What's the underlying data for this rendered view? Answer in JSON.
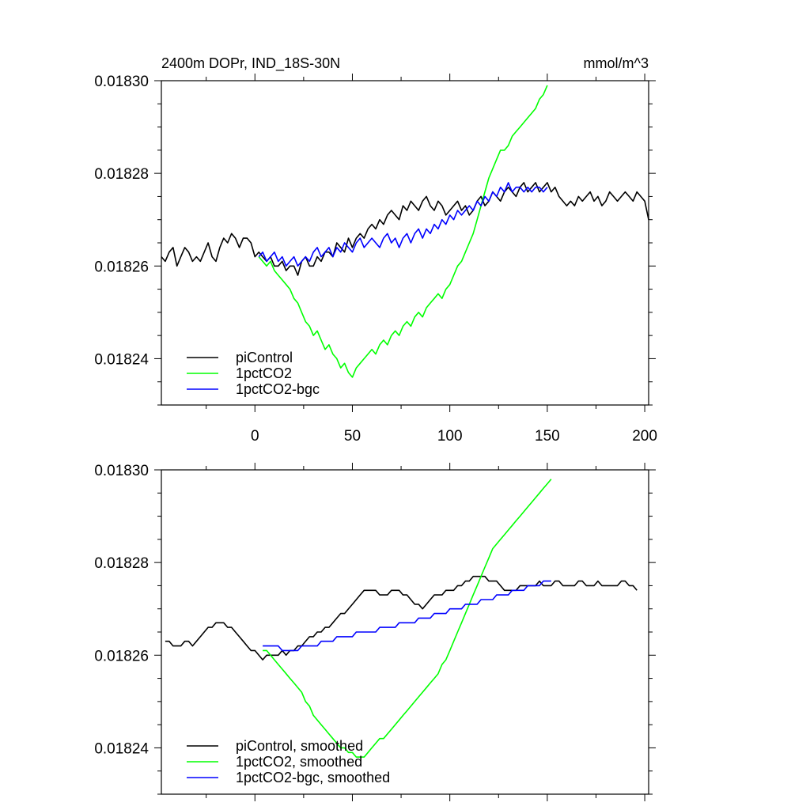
{
  "chart_data": [
    {
      "type": "line",
      "title_left": "2400m DOPr, IND_18S-30N",
      "title_right": "mmol/m^3",
      "xlim": [
        -48,
        202
      ],
      "ylim": [
        0.01823,
        0.0183
      ],
      "x_ticks": [
        0,
        50,
        100,
        150,
        200
      ],
      "y_ticks": [
        0.01824,
        0.01826,
        0.01828,
        0.0183
      ],
      "x_tick_labels": [
        "0",
        "50",
        "100",
        "150",
        "200"
      ],
      "y_tick_labels": [
        "0.01824",
        "0.01826",
        "0.01828",
        "0.01830"
      ],
      "legend_position": "bottom-left",
      "series": [
        {
          "name": "piControl",
          "color": "#000000",
          "x_start": -48,
          "x_step": 2,
          "values": [
            0.018262,
            0.018261,
            0.018263,
            0.018264,
            0.01826,
            0.018262,
            0.018264,
            0.018263,
            0.018261,
            0.018262,
            0.018261,
            0.018263,
            0.018265,
            0.018262,
            0.018261,
            0.018264,
            0.018266,
            0.018265,
            0.018267,
            0.018266,
            0.018264,
            0.018266,
            0.018266,
            0.018265,
            0.018262,
            0.018263,
            0.018262,
            0.018261,
            0.018262,
            0.01826,
            0.01826,
            0.018261,
            0.018259,
            0.01826,
            0.01826,
            0.018258,
            0.018261,
            0.018262,
            0.01826,
            0.01826,
            0.018262,
            0.018261,
            0.018263,
            0.018263,
            0.018262,
            0.018265,
            0.018264,
            0.018263,
            0.018266,
            0.018264,
            0.018266,
            0.018267,
            0.018266,
            0.018268,
            0.018269,
            0.018268,
            0.01827,
            0.018269,
            0.018271,
            0.018272,
            0.018271,
            0.01827,
            0.018273,
            0.018272,
            0.018274,
            0.018273,
            0.018272,
            0.018274,
            0.018275,
            0.018273,
            0.018272,
            0.018274,
            0.018273,
            0.018271,
            0.018272,
            0.018273,
            0.018274,
            0.018272,
            0.018273,
            0.018271,
            0.018272,
            0.018274,
            0.018275,
            0.018273,
            0.018274,
            0.018276,
            0.018275,
            0.018274,
            0.018276,
            0.018277,
            0.018276,
            0.018275,
            0.018277,
            0.018278,
            0.018276,
            0.018277,
            0.018278,
            0.018276,
            0.018277,
            0.018278,
            0.018276,
            0.018277,
            0.018275,
            0.018274,
            0.018273,
            0.018274,
            0.018273,
            0.018275,
            0.018274,
            0.018275,
            0.018276,
            0.018274,
            0.018275,
            0.018273,
            0.018274,
            0.018276,
            0.018275,
            0.018274,
            0.018275,
            0.018276,
            0.018275,
            0.018274,
            0.018276,
            0.018275,
            0.018274,
            0.01827
          ]
        },
        {
          "name": "1pctCO2",
          "color": "#00ff00",
          "x_start": 2,
          "x_step": 2,
          "values": [
            0.018262,
            0.018261,
            0.01826,
            0.018261,
            0.018259,
            0.018258,
            0.018257,
            0.018256,
            0.018255,
            0.018253,
            0.018252,
            0.01825,
            0.018248,
            0.018247,
            0.018245,
            0.018246,
            0.018244,
            0.018242,
            0.018243,
            0.018241,
            0.01824,
            0.018238,
            0.018239,
            0.018237,
            0.018236,
            0.018238,
            0.018239,
            0.01824,
            0.018241,
            0.018242,
            0.018241,
            0.018243,
            0.018244,
            0.018243,
            0.018245,
            0.018246,
            0.018245,
            0.018247,
            0.018248,
            0.018247,
            0.018249,
            0.01825,
            0.018249,
            0.018251,
            0.018252,
            0.018253,
            0.018254,
            0.018253,
            0.018255,
            0.018256,
            0.018258,
            0.01826,
            0.018261,
            0.018263,
            0.018265,
            0.018267,
            0.01827,
            0.018273,
            0.018276,
            0.018279,
            0.018281,
            0.018283,
            0.018285,
            0.018285,
            0.018286,
            0.018288,
            0.018289,
            0.01829,
            0.018291,
            0.018292,
            0.018293,
            0.018294,
            0.018296,
            0.018297,
            0.018299
          ]
        },
        {
          "name": "1pctCO2-bgc",
          "color": "#0000ff",
          "x_start": 2,
          "x_step": 2,
          "values": [
            0.018262,
            0.018263,
            0.018261,
            0.018262,
            0.018263,
            0.018261,
            0.018262,
            0.01826,
            0.018261,
            0.018262,
            0.01826,
            0.018261,
            0.018262,
            0.018261,
            0.018263,
            0.018264,
            0.018262,
            0.018263,
            0.018264,
            0.018262,
            0.018264,
            0.018263,
            0.018265,
            0.018264,
            0.018263,
            0.018265,
            0.018266,
            0.018264,
            0.018265,
            0.018266,
            0.018265,
            0.018264,
            0.018266,
            0.018267,
            0.018265,
            0.018266,
            0.018264,
            0.018266,
            0.018267,
            0.018265,
            0.018267,
            0.018268,
            0.018266,
            0.018268,
            0.018267,
            0.018269,
            0.018268,
            0.01827,
            0.018269,
            0.018271,
            0.01827,
            0.018272,
            0.018271,
            0.018272,
            0.018273,
            0.018272,
            0.018274,
            0.018273,
            0.018275,
            0.018274,
            0.018276,
            0.018275,
            0.018277,
            0.018276,
            0.018278,
            0.018276,
            0.018277,
            0.018277,
            0.018276,
            0.018277,
            0.018276,
            0.018277,
            0.018277,
            0.018276,
            0.018277
          ]
        }
      ]
    },
    {
      "type": "line",
      "xlim": [
        -48,
        202
      ],
      "ylim": [
        0.01823,
        0.0183
      ],
      "x_ticks": [
        0,
        50,
        100,
        150,
        200
      ],
      "y_ticks": [
        0.01824,
        0.01826,
        0.01828,
        0.0183
      ],
      "y_tick_labels": [
        "0.01824",
        "0.01826",
        "0.01828",
        "0.01830"
      ],
      "legend_position": "bottom-left",
      "series": [
        {
          "name": "piControl, smoothed",
          "color": "#000000",
          "x_start": -46,
          "x_step": 2,
          "values": [
            0.018263,
            0.018263,
            0.018262,
            0.018262,
            0.018262,
            0.018263,
            0.018263,
            0.018262,
            0.018263,
            0.018264,
            0.018265,
            0.018266,
            0.018266,
            0.018267,
            0.018267,
            0.018267,
            0.018266,
            0.018266,
            0.018265,
            0.018264,
            0.018263,
            0.018262,
            0.018261,
            0.018261,
            0.01826,
            0.018259,
            0.01826,
            0.01826,
            0.01826,
            0.01826,
            0.018261,
            0.01826,
            0.018261,
            0.018261,
            0.018262,
            0.018262,
            0.018263,
            0.018264,
            0.018264,
            0.018265,
            0.018265,
            0.018266,
            0.018266,
            0.018267,
            0.018268,
            0.018269,
            0.018269,
            0.01827,
            0.018271,
            0.018272,
            0.018273,
            0.018274,
            0.018274,
            0.018274,
            0.018274,
            0.018273,
            0.018273,
            0.018273,
            0.018274,
            0.018274,
            0.018274,
            0.018273,
            0.018273,
            0.018272,
            0.018271,
            0.018271,
            0.01827,
            0.018271,
            0.018272,
            0.018273,
            0.018273,
            0.018273,
            0.018274,
            0.018274,
            0.018274,
            0.018275,
            0.018275,
            0.018276,
            0.018276,
            0.018277,
            0.018277,
            0.018277,
            0.018277,
            0.018276,
            0.018276,
            0.018276,
            0.018275,
            0.018274,
            0.018274,
            0.018274,
            0.018274,
            0.018275,
            0.018275,
            0.018275,
            0.018275,
            0.018275,
            0.018276,
            0.018275,
            0.018275,
            0.018275,
            0.018276,
            0.018276,
            0.018275,
            0.018275,
            0.018275,
            0.018275,
            0.018276,
            0.018276,
            0.018275,
            0.018275,
            0.018275,
            0.018276,
            0.018275,
            0.018275,
            0.018275,
            0.018275,
            0.018275,
            0.018276,
            0.018276,
            0.018275,
            0.018275,
            0.018274
          ]
        },
        {
          "name": "1pctCO2, smoothed",
          "color": "#00ff00",
          "x_start": 4,
          "x_step": 2,
          "values": [
            0.018261,
            0.018261,
            0.01826,
            0.018259,
            0.018258,
            0.018257,
            0.018256,
            0.018255,
            0.018254,
            0.018253,
            0.018252,
            0.01825,
            0.018249,
            0.018247,
            0.018246,
            0.018245,
            0.018244,
            0.018243,
            0.018242,
            0.018241,
            0.01824,
            0.01824,
            0.018239,
            0.018239,
            0.018238,
            0.018238,
            0.018238,
            0.018239,
            0.01824,
            0.018241,
            0.018242,
            0.018242,
            0.018243,
            0.018244,
            0.018245,
            0.018246,
            0.018247,
            0.018248,
            0.018249,
            0.01825,
            0.018251,
            0.018252,
            0.018253,
            0.018254,
            0.018255,
            0.018256,
            0.018258,
            0.018259,
            0.018261,
            0.018263,
            0.018265,
            0.018267,
            0.018269,
            0.018271,
            0.018273,
            0.018275,
            0.018277,
            0.018279,
            0.018281,
            0.018283,
            0.018284,
            0.018285,
            0.018286,
            0.018287,
            0.018288,
            0.018289,
            0.01829,
            0.018291,
            0.018292,
            0.018293,
            0.018294,
            0.018295,
            0.018296,
            0.018297,
            0.018298
          ]
        },
        {
          "name": "1pctCO2-bgc, smoothed",
          "color": "#0000ff",
          "x_start": 4,
          "x_step": 2,
          "values": [
            0.018262,
            0.018262,
            0.018262,
            0.018262,
            0.018262,
            0.018261,
            0.018261,
            0.018261,
            0.018261,
            0.018261,
            0.018262,
            0.018262,
            0.018262,
            0.018262,
            0.018262,
            0.018263,
            0.018263,
            0.018263,
            0.018263,
            0.018264,
            0.018264,
            0.018264,
            0.018264,
            0.018264,
            0.018265,
            0.018265,
            0.018265,
            0.018265,
            0.018265,
            0.018265,
            0.018266,
            0.018266,
            0.018266,
            0.018266,
            0.018266,
            0.018267,
            0.018267,
            0.018267,
            0.018267,
            0.018267,
            0.018268,
            0.018268,
            0.018268,
            0.018268,
            0.018269,
            0.018269,
            0.018269,
            0.018269,
            0.01827,
            0.01827,
            0.01827,
            0.01827,
            0.018271,
            0.018271,
            0.018271,
            0.018271,
            0.018272,
            0.018272,
            0.018272,
            0.018272,
            0.018273,
            0.018273,
            0.018273,
            0.018273,
            0.018274,
            0.018274,
            0.018274,
            0.018274,
            0.018275,
            0.018275,
            0.018275,
            0.018275,
            0.018276,
            0.018276,
            0.018276
          ]
        }
      ]
    }
  ]
}
